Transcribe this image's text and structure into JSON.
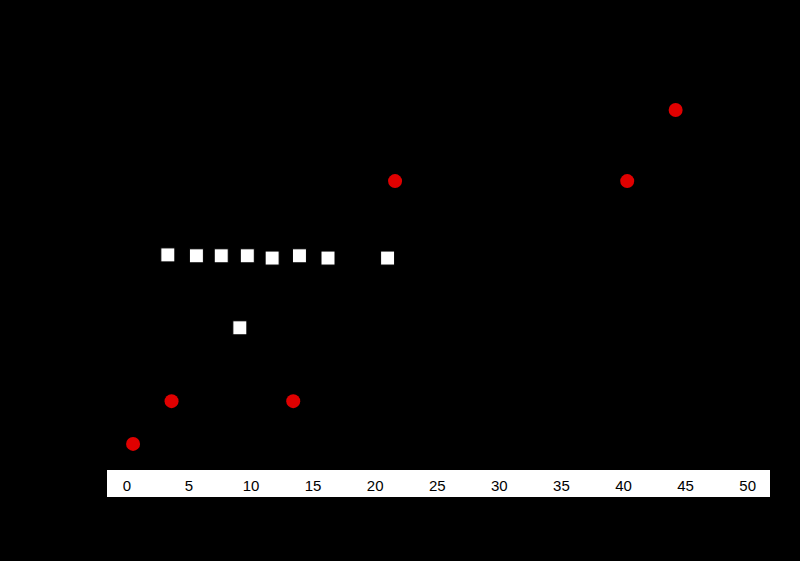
{
  "chart_data": {
    "type": "scatter",
    "xlim": [
      -1.6,
      51.8
    ],
    "xticks": [
      0,
      5,
      10,
      15,
      20,
      25,
      30,
      35,
      40,
      45,
      50
    ],
    "ylim": [
      0,
      100
    ],
    "tick_labels": "x",
    "grid": false,
    "series": [
      {
        "color": "#e00000",
        "marker": "circle",
        "x": [
          0.5,
          3.6,
          13.4,
          21.6,
          40.3,
          44.2
        ],
        "values": [
          5.8,
          15.3,
          15.3,
          64.2,
          64.2,
          80
        ]
      },
      {
        "color": "#ffffff",
        "marker": "square",
        "x": [
          3.3,
          5.6,
          7.6,
          9.7,
          11.7,
          13.9,
          16.2,
          21.0,
          9.1
        ],
        "values": [
          47.8,
          47.6,
          47.6,
          47.6,
          47.1,
          47.6,
          47.1,
          47.1,
          31.6
        ]
      }
    ]
  }
}
